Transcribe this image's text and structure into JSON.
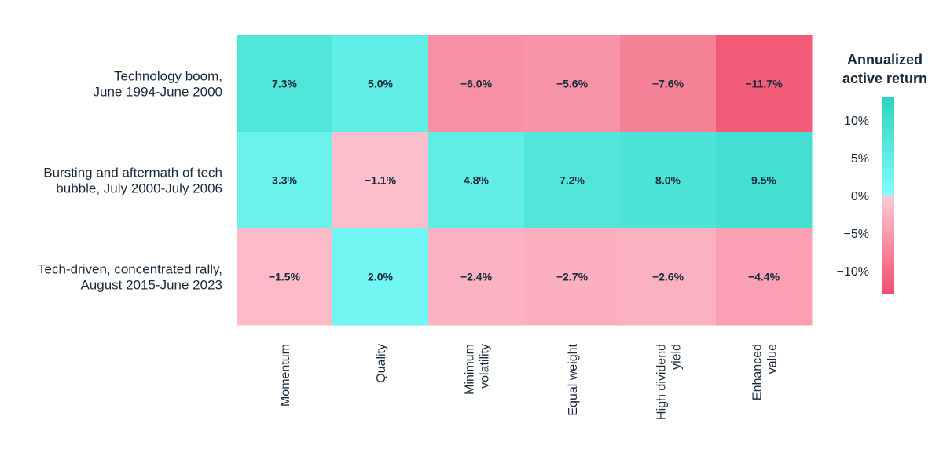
{
  "chart_data": {
    "type": "heatmap",
    "rows": [
      [
        "Technology boom,",
        "June 1994-June 2000"
      ],
      [
        "Bursting and aftermath of tech",
        "bubble, July 2000-July 2006"
      ],
      [
        "Tech-driven, concentrated rally,",
        "August 2015-June 2023"
      ]
    ],
    "columns": [
      [
        "Momentum"
      ],
      [
        "Quality"
      ],
      [
        "Minimum",
        "volatility"
      ],
      [
        "Equal weight"
      ],
      [
        "High dividend",
        "yield"
      ],
      [
        "Enhanced",
        "value"
      ]
    ],
    "values": [
      [
        7.3,
        5.0,
        -6.0,
        -5.6,
        -7.6,
        -11.7
      ],
      [
        3.3,
        -1.1,
        4.8,
        7.2,
        8.0,
        9.5
      ],
      [
        -1.5,
        2.0,
        -2.4,
        -2.7,
        -2.6,
        -4.4
      ]
    ],
    "cell_labels": [
      [
        "7.3%",
        "5.0%",
        "−6.0%",
        "−5.6%",
        "−7.6%",
        "−11.7%"
      ],
      [
        "3.3%",
        "−1.1%",
        "4.8%",
        "7.2%",
        "8.0%",
        "9.5%"
      ],
      [
        "−1.5%",
        "2.0%",
        "−2.4%",
        "−2.7%",
        "−2.6%",
        "−4.4%"
      ]
    ],
    "colorbar": {
      "title": [
        "Annualized",
        "active return"
      ],
      "ticks": [
        10,
        5,
        0,
        -5,
        -10
      ],
      "tick_labels": [
        "10%",
        "5%",
        "0%",
        "−5%",
        "−10%"
      ],
      "range": [
        -13,
        13
      ],
      "colors": {
        "pos_high": "#2dd4c0",
        "pos_low": "#7ffcfc",
        "neg_low": "#ffc9d5",
        "neg_high": "#ef4f6d"
      }
    }
  }
}
